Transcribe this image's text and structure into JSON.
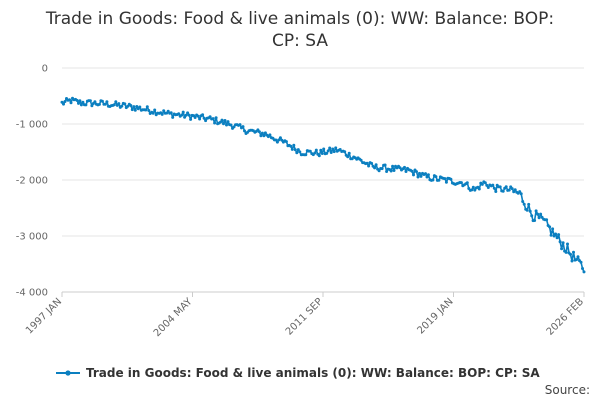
{
  "chart_data": {
    "type": "line",
    "title_lines": [
      "Trade in Goods: Food & live animals (0): WW: Balance: BOP:",
      "CP: SA"
    ],
    "xlabel": "",
    "ylabel": "",
    "x_ticks": [
      "1997 JAN",
      "2004 MAY",
      "2011 SEP",
      "2019 JAN",
      "2026 FEB"
    ],
    "y_ticks": [
      "0",
      "-1 000",
      "-2 000",
      "-3 000",
      "-4 000"
    ],
    "y_tick_values": [
      0,
      -1000,
      -2000,
      -3000,
      -4000
    ],
    "ylim": [
      -4000,
      0
    ],
    "x_range": [
      "1997 JAN",
      "2026 FEB"
    ],
    "n_months": 350,
    "series": [
      {
        "name": "Trade in Goods: Food & live animals (0): WW: Balance: BOP: CP: SA",
        "color": "#0b7fc0",
        "anchors": [
          {
            "month": 0,
            "value": -630
          },
          {
            "month": 6,
            "value": -580
          },
          {
            "month": 12,
            "value": -620
          },
          {
            "month": 30,
            "value": -640
          },
          {
            "month": 48,
            "value": -700
          },
          {
            "month": 60,
            "value": -760
          },
          {
            "month": 72,
            "value": -820
          },
          {
            "month": 84,
            "value": -850
          },
          {
            "month": 100,
            "value": -920
          },
          {
            "month": 112,
            "value": -1000
          },
          {
            "month": 124,
            "value": -1120
          },
          {
            "month": 136,
            "value": -1180
          },
          {
            "month": 150,
            "value": -1350
          },
          {
            "month": 160,
            "value": -1500
          },
          {
            "month": 172,
            "value": -1520
          },
          {
            "month": 184,
            "value": -1460
          },
          {
            "month": 196,
            "value": -1600
          },
          {
            "month": 208,
            "value": -1770
          },
          {
            "month": 220,
            "value": -1800
          },
          {
            "month": 232,
            "value": -1830
          },
          {
            "month": 244,
            "value": -1950
          },
          {
            "month": 256,
            "value": -2000
          },
          {
            "month": 268,
            "value": -2050
          },
          {
            "month": 276,
            "value": -2180
          },
          {
            "month": 282,
            "value": -2050
          },
          {
            "month": 290,
            "value": -2150
          },
          {
            "month": 300,
            "value": -2180
          },
          {
            "month": 306,
            "value": -2250
          },
          {
            "month": 314,
            "value": -2600
          },
          {
            "month": 322,
            "value": -2750
          },
          {
            "month": 330,
            "value": -3000
          },
          {
            "month": 338,
            "value": -3250
          },
          {
            "month": 344,
            "value": -3450
          },
          {
            "month": 349,
            "value": -3580
          }
        ],
        "noise_amplitude": 60
      }
    ],
    "legend_position": "bottom",
    "grid": true
  },
  "source_label": "Source:"
}
